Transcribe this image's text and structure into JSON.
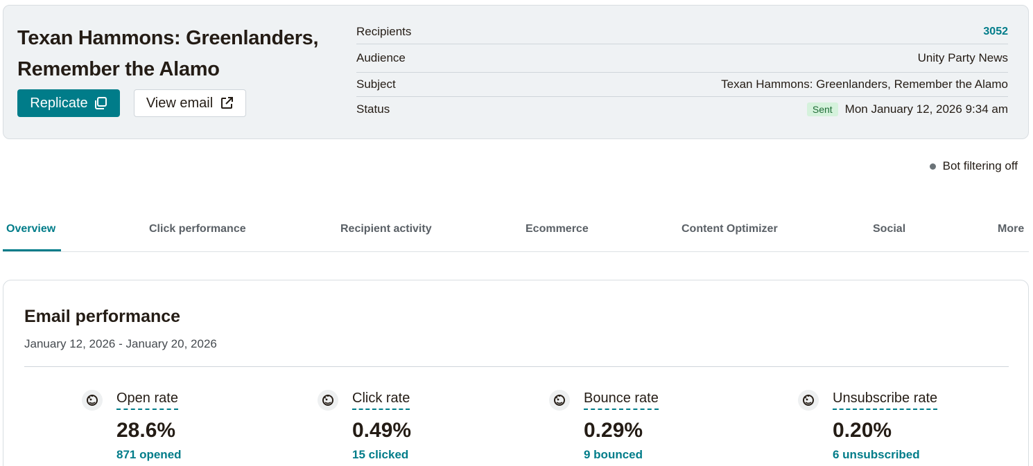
{
  "colors": {
    "accent": "#007c89",
    "sent_badge_bg": "#d5f2dc",
    "card_bg": "#eff2f4"
  },
  "header": {
    "title": "Texan Hammons: Greenlanders, Remember the Alamo",
    "replicate_label": "Replicate",
    "view_email_label": "View email",
    "details": [
      {
        "label": "Recipients",
        "value": "3052"
      },
      {
        "label": "Audience",
        "value": "Unity Party News"
      },
      {
        "label": "Subject",
        "value": "Texan Hammons: Greenlanders, Remember the Alamo"
      },
      {
        "label": "Status",
        "badge": "Sent",
        "value": "Mon January 12, 2026 9:34 am"
      }
    ]
  },
  "bot_filter": "Bot filtering off",
  "tabs": [
    "Overview",
    "Click performance",
    "Recipient activity",
    "Ecommerce",
    "Content Optimizer",
    "Social",
    "More"
  ],
  "active_tab": "Overview",
  "performance": {
    "title": "Email performance",
    "date_range": "January 12, 2026 - January 20, 2026",
    "metrics": [
      {
        "icon": "mailchimp-freddie-icon",
        "label": "Open rate",
        "value": "28.6%",
        "sub": "871 opened"
      },
      {
        "icon": "mailchimp-freddie-icon",
        "label": "Click rate",
        "value": "0.49%",
        "sub": "15 clicked"
      },
      {
        "icon": "mailchimp-freddie-icon",
        "label": "Bounce rate",
        "value": "0.29%",
        "sub": "9 bounced"
      },
      {
        "icon": "mailchimp-freddie-icon",
        "label": "Unsubscribe rate",
        "value": "0.20%",
        "sub": "6 unsubscribed"
      }
    ]
  }
}
